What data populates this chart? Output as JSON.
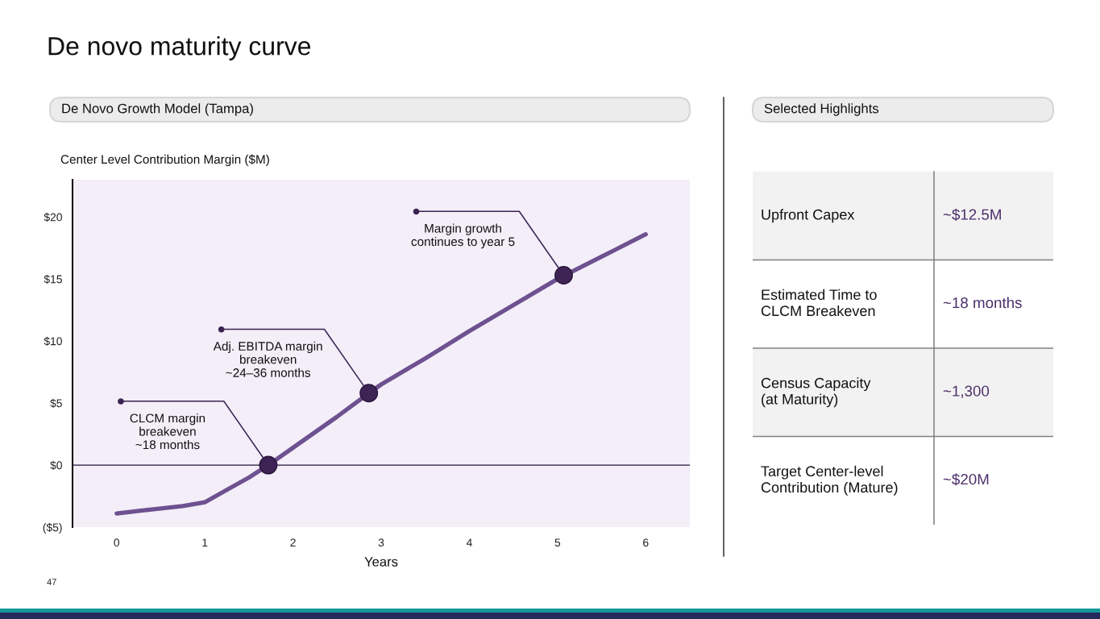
{
  "chart_data": [
    {
      "type": "line",
      "title": "De novo maturity curve",
      "subtitle": "De Novo Growth Model (Tampa)",
      "xlabel": "Years",
      "ylabel": "Center Level Contribution Margin ($M)",
      "series": [
        {
          "type": "line",
          "color": "#6e5190",
          "x": [
            0,
            0.25,
            0.5,
            0.75,
            1,
            1.25,
            1.5,
            1.72,
            2,
            2.5,
            2.86,
            3,
            3.5,
            4,
            4.5,
            5,
            5.5,
            6
          ],
          "values": [
            -3.9,
            -3.7,
            -3.5,
            -3.3,
            -3.0,
            -2.0,
            -1.0,
            0,
            1.4,
            3.9,
            5.8,
            6.5,
            8.6,
            10.8,
            12.9,
            15.0,
            16.8,
            18.6
          ]
        },
        {
          "type": "scatter",
          "color": "#3e2454",
          "marker": "circle",
          "x": [
            1.72,
            2.86,
            5.07
          ],
          "values": [
            0,
            5.8,
            15.3
          ]
        }
      ],
      "xlim": [
        -0.5,
        6.5
      ],
      "xticks": [
        0,
        1,
        2,
        3,
        4,
        5,
        6
      ],
      "ylim": [
        -5,
        23
      ],
      "yticks": [
        {
          "value": -5,
          "label": "($5)"
        },
        {
          "value": 0,
          "label": "$0"
        },
        {
          "value": 5,
          "label": "$5"
        },
        {
          "value": 10,
          "label": "$10"
        },
        {
          "value": 15,
          "label": "$15"
        },
        {
          "value": 20,
          "label": "$20"
        }
      ],
      "ref_lines": [
        {
          "axis": "y",
          "value": 0,
          "color": "#5e4f70"
        }
      ],
      "annotations": [
        {
          "text": "CLCM margin\nbreakeven\n~18 months",
          "x": 1.72,
          "y": 0
        },
        {
          "text": "Adj. EBITDA margin\nbreakeven\n~24–36 months",
          "x": 2.86,
          "y": 5.8
        },
        {
          "text": "Margin growth\ncontinues to year 5",
          "x": 5.07,
          "y": 15.3
        },
        "47"
      ]
    },
    {
      "type": "other",
      "title": "Selected Highlights",
      "annotations": [
        "Upfront Capex",
        "~$12.5M",
        "Estimated Time to\nCLCM Breakeven",
        "~18 months",
        "Census Capacity\n(at Maturity)",
        "~1,300",
        "Target Center-level\nContribution (Mature)",
        "~$20M"
      ]
    }
  ]
}
